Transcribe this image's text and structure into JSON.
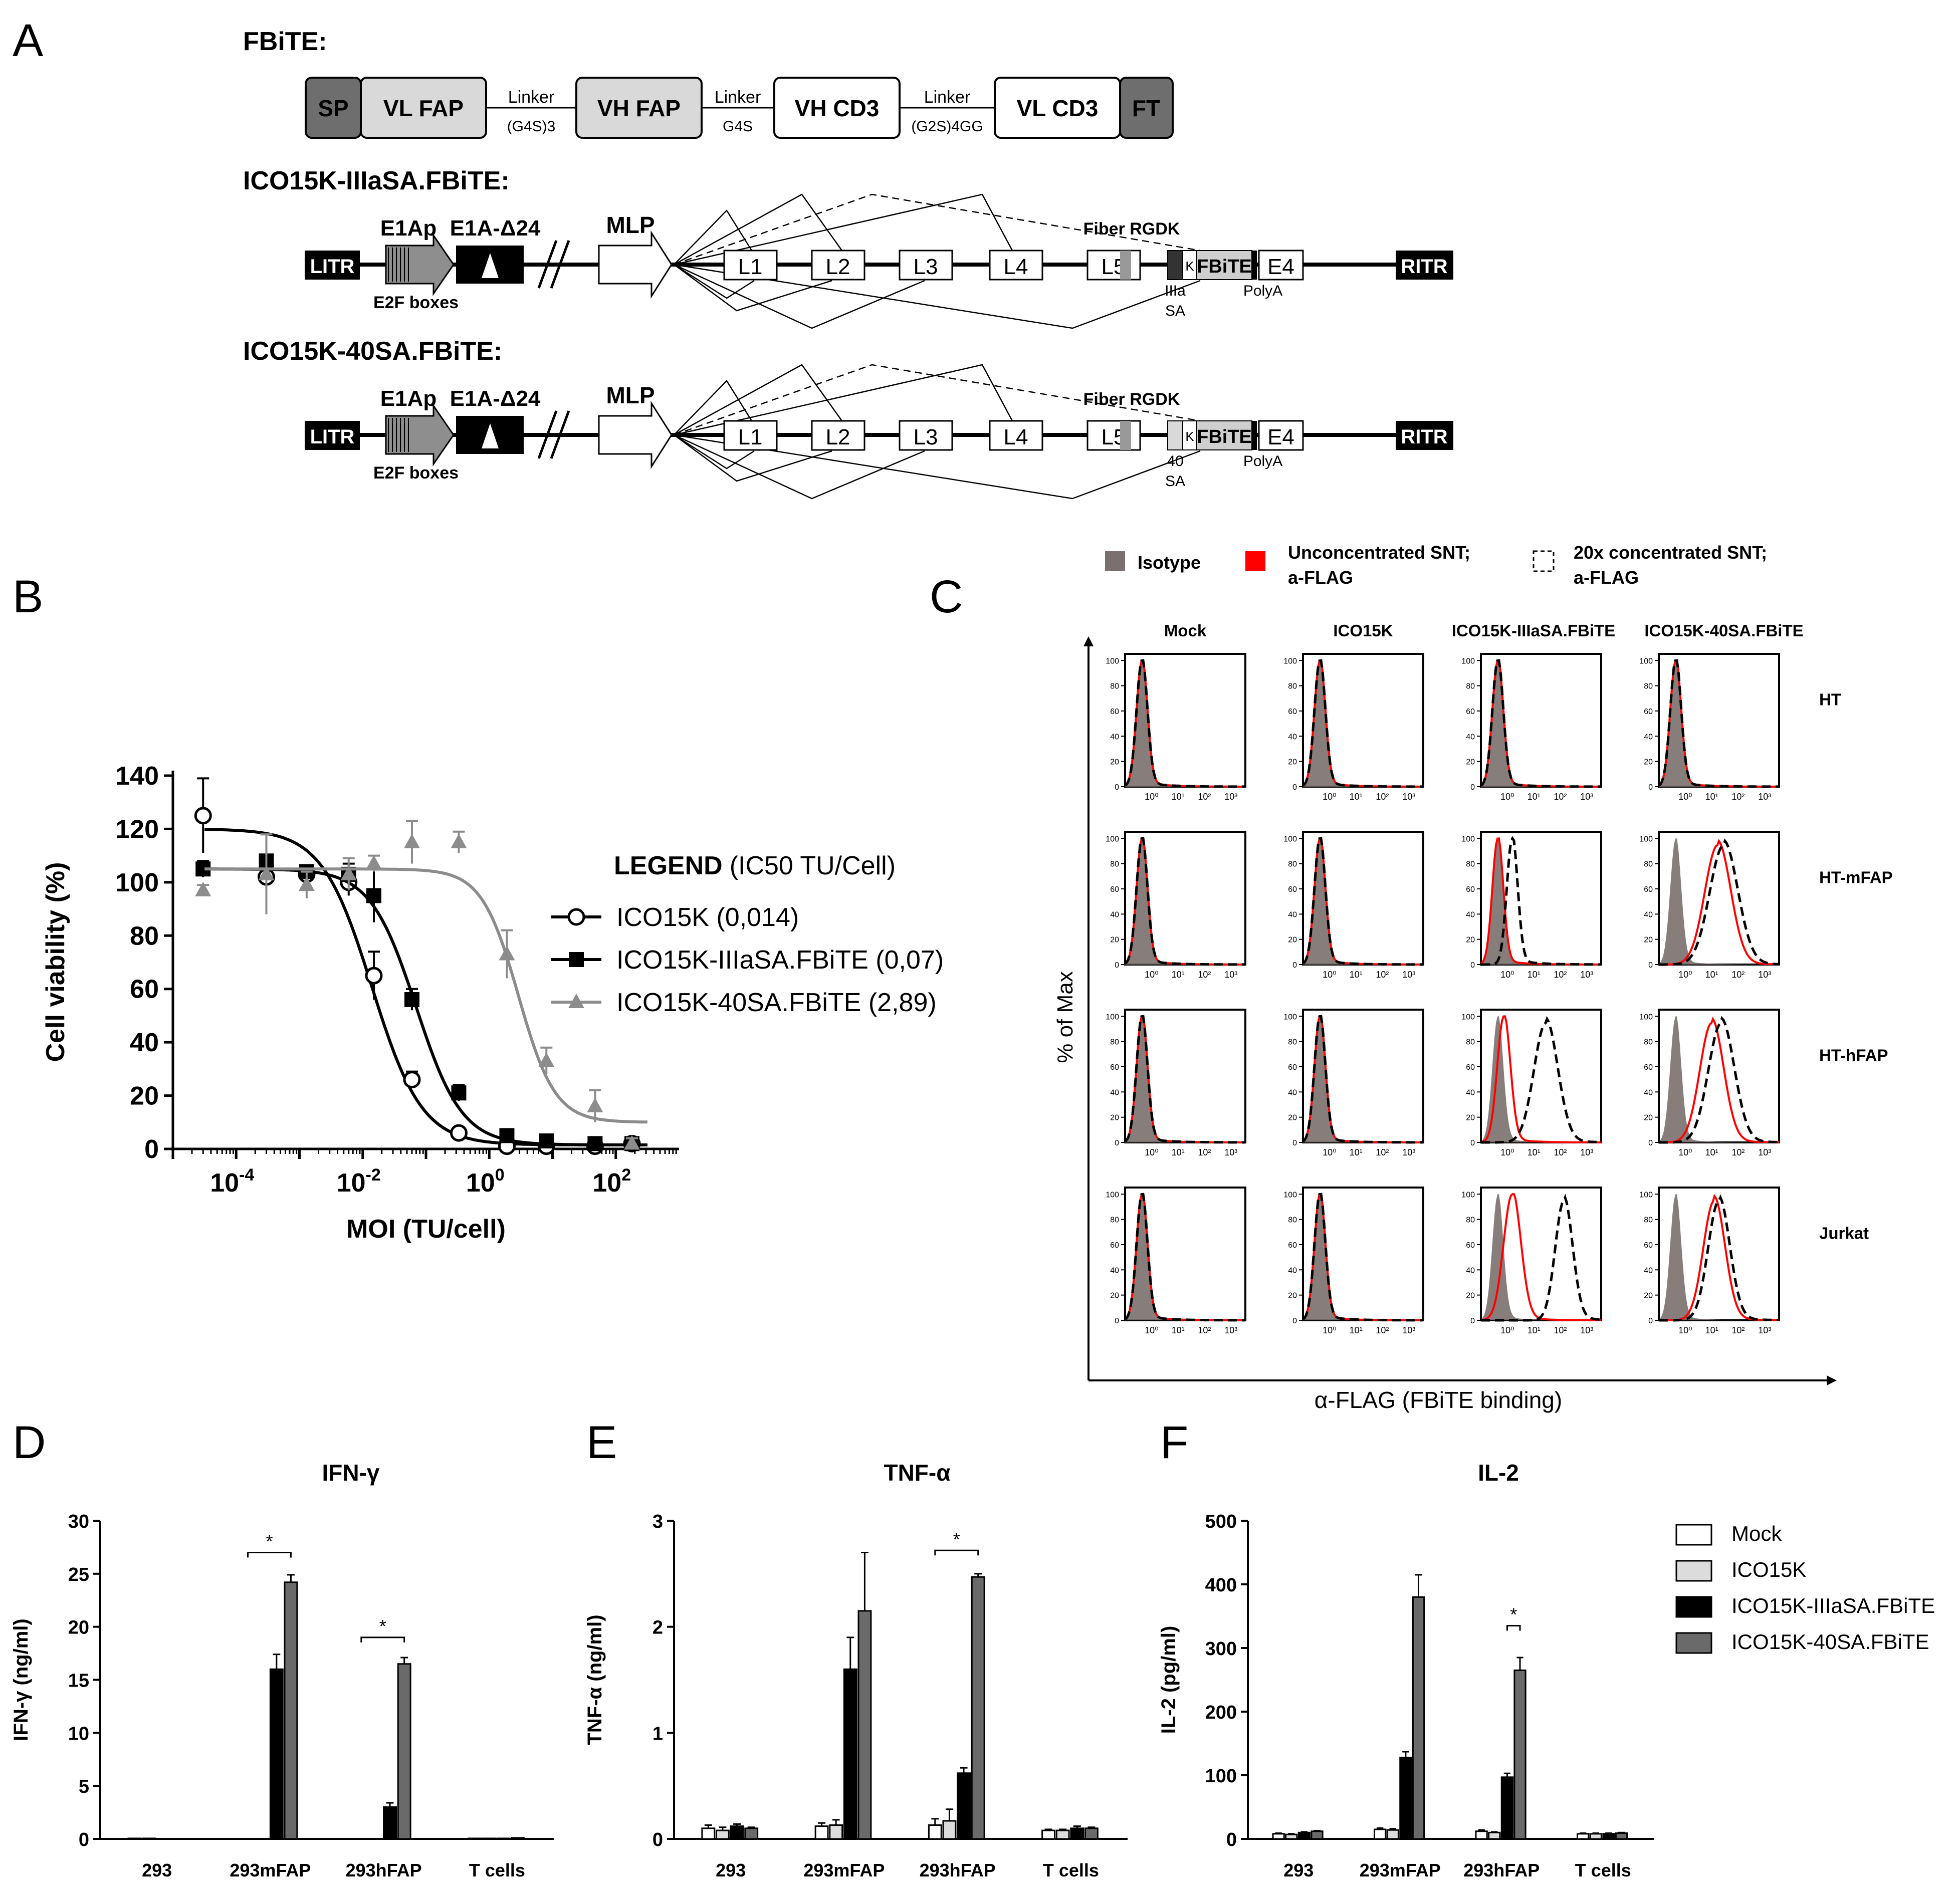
{
  "panels": {
    "A": "A",
    "B": "B",
    "C": "C",
    "D": "D",
    "E": "E",
    "F": "F"
  },
  "panel_a": {
    "fbite": {
      "title": "FBiTE:",
      "domains": [
        "SP",
        "VL FAP",
        "VH FAP",
        "VH CD3",
        "VL CD3",
        "FT"
      ],
      "linkers": [
        {
          "label": "Linker",
          "sub": "(G4S)3"
        },
        {
          "label": "Linker",
          "sub": "G4S"
        },
        {
          "label": "Linker",
          "sub": "(G2S)4GG"
        }
      ]
    },
    "constructs": [
      {
        "title": "ICO15K-IIIaSA.FBiTE:",
        "sa_label_1": "IIIa",
        "sa_label_2": "SA"
      },
      {
        "title": "ICO15K-40SA.FBiTE:",
        "sa_label_1": "40",
        "sa_label_2": "SA"
      }
    ],
    "genome": {
      "litr": "LITR",
      "ritr": "RITR",
      "e1ap": "E1Ap",
      "e1a": "E1A-Δ24",
      "e2f": "E2F boxes",
      "mlp": "MLP",
      "late": [
        "L1",
        "L2",
        "L3",
        "L4",
        "L5"
      ],
      "fiber": "Fiber RGDK",
      "k": "K",
      "fbite": "FBiTE",
      "e4": "E4",
      "polya": "PolyA"
    }
  },
  "chart_data": [
    {
      "id": "B",
      "type": "line",
      "title": "",
      "xlabel": "MOI (TU/cell)",
      "ylabel": "Cell viability (%)",
      "xscale": "log",
      "xlim": [
        1e-05,
        1000
      ],
      "ylim": [
        0,
        140
      ],
      "yticks": [
        "0",
        "20",
        "40",
        "60",
        "80",
        "100",
        "120",
        "140"
      ],
      "xticks": [
        {
          "base": "10",
          "exp": "-4",
          "v": 0.0001
        },
        {
          "base": "10",
          "exp": "-2",
          "v": 0.01
        },
        {
          "base": "10",
          "exp": "0",
          "v": 1
        },
        {
          "base": "10",
          "exp": "2",
          "v": 100
        }
      ],
      "legend_title": "LEGEND",
      "legend_subtitle": "(IC50 TU/Cell)",
      "series": [
        {
          "name": "ICO15K (0,014)",
          "marker": "open-circle",
          "color": "#000000",
          "top": 120,
          "bottom": 1.5,
          "ec50": 0.014,
          "hill": 1.1,
          "x": [
            3e-05,
            0.0003,
            0.0013,
            0.006,
            0.015,
            0.06,
            0.33,
            1.9,
            8,
            47,
            180
          ],
          "y": [
            125,
            102,
            103,
            100,
            65,
            26,
            6,
            1,
            1,
            1,
            2
          ],
          "err": [
            14,
            3,
            3,
            5,
            9,
            3,
            1,
            1,
            0.5,
            0.5,
            0.5
          ]
        },
        {
          "name": "ICO15K-IIIaSA.FBiTE (0,07)",
          "marker": "filled-square",
          "color": "#000000",
          "top": 105,
          "bottom": 1.5,
          "ec50": 0.07,
          "hill": 1.2,
          "x": [
            3e-05,
            0.0003,
            0.0013,
            0.006,
            0.015,
            0.06,
            0.33,
            1.9,
            8,
            47,
            180
          ],
          "y": [
            105,
            108,
            104,
            103,
            95,
            56,
            21,
            5,
            3,
            2,
            2
          ],
          "err": [
            3,
            10,
            2,
            4,
            10,
            4,
            3,
            2,
            0.5,
            0.5,
            0.5
          ]
        },
        {
          "name": "ICO15K-40SA.FBiTE (2,89)",
          "marker": "filled-triangle",
          "color": "#8c8c8c",
          "top": 105,
          "bottom": 10,
          "ec50": 2.89,
          "hill": 1.5,
          "x": [
            3e-05,
            0.0003,
            0.0013,
            0.006,
            0.015,
            0.06,
            0.33,
            1.9,
            8,
            47,
            180
          ],
          "y": [
            97,
            103,
            99,
            103,
            107,
            115,
            115,
            73,
            33,
            16,
            2
          ],
          "err": [
            2,
            15,
            5,
            6,
            3,
            8,
            4,
            9,
            5,
            6,
            2
          ]
        }
      ]
    },
    {
      "id": "C",
      "type": "histogram-grid",
      "legend": [
        {
          "label": "Isotype",
          "color": "#7a706e"
        },
        {
          "label": "Unconcentrated SNT;",
          "label2": "a-FLAG",
          "color": "#ff0000"
        },
        {
          "label": "20x concentrated SNT;",
          "label2": "a-FLAG",
          "color": "#000000"
        }
      ],
      "columns": [
        "Mock",
        "ICO15K",
        "ICO15K-IIIaSA.FBiTE",
        "ICO15K-40SA.FBiTE"
      ],
      "rows": [
        "HT",
        "HT-mFAP",
        "HT-hFAP",
        "Jurkat"
      ],
      "ylabel": "% of Max",
      "xlabel": "α-FLAG (FBiTE binding)",
      "yticks": [
        "0",
        "20",
        "40",
        "60",
        "80",
        "100"
      ],
      "xticks": [
        "10⁰",
        "10¹",
        "10²",
        "10³"
      ]
    },
    {
      "id": "D",
      "type": "bar",
      "title": "IFN-γ",
      "ylabel": "IFN-γ (ng/ml)",
      "ylim": [
        0,
        30
      ],
      "yticks": [
        "0",
        "5",
        "10",
        "15",
        "20",
        "25",
        "30"
      ],
      "categories": [
        "293",
        "293mFAP",
        "293hFAP",
        "T cells"
      ],
      "series": [
        {
          "name": "Mock",
          "color": "#ffffff",
          "values": [
            0.05,
            0,
            0,
            0.05
          ],
          "err": [
            0,
            0,
            0,
            0
          ]
        },
        {
          "name": "ICO15K",
          "color": "#dcdcdc",
          "values": [
            0.05,
            0,
            0,
            0.05
          ],
          "err": [
            0,
            0,
            0,
            0
          ]
        },
        {
          "name": "ICO15K-IIIaSA.FBiTE",
          "color": "#000000",
          "values": [
            0,
            16,
            3,
            0.05
          ],
          "err": [
            0,
            1.4,
            0.4,
            0
          ]
        },
        {
          "name": "ICO15K-40SA.FBiTE",
          "color": "#6a6a6a",
          "values": [
            0,
            24.2,
            16.5,
            0.1
          ],
          "err": [
            0,
            0.7,
            0.6,
            0
          ]
        }
      ],
      "significance": [
        {
          "category": 1,
          "from": 0,
          "to": 3,
          "label": "*",
          "y": 27
        },
        {
          "category": 2,
          "from": 0,
          "to": 3,
          "label": "*",
          "y": 19
        }
      ]
    },
    {
      "id": "E",
      "type": "bar",
      "title": "TNF-α",
      "ylabel": "TNF-α (ng/ml)",
      "ylim": [
        0,
        3
      ],
      "yticks": [
        "0",
        "1",
        "2",
        "3"
      ],
      "categories": [
        "293",
        "293mFAP",
        "293hFAP",
        "T cells"
      ],
      "series": [
        {
          "name": "Mock",
          "color": "#ffffff",
          "values": [
            0.1,
            0.12,
            0.13,
            0.08
          ],
          "err": [
            0.03,
            0.03,
            0.06,
            0.01
          ]
        },
        {
          "name": "ICO15K",
          "color": "#dcdcdc",
          "values": [
            0.08,
            0.13,
            0.17,
            0.08
          ],
          "err": [
            0.03,
            0.05,
            0.11,
            0.01
          ]
        },
        {
          "name": "ICO15K-IIIaSA.FBiTE",
          "color": "#000000",
          "values": [
            0.12,
            1.6,
            0.62,
            0.1
          ],
          "err": [
            0.02,
            0.3,
            0.05,
            0.02
          ]
        },
        {
          "name": "ICO15K-40SA.FBiTE",
          "color": "#6a6a6a",
          "values": [
            0.1,
            2.15,
            2.47,
            0.1
          ],
          "err": [
            0.01,
            0.55,
            0.03,
            0.01
          ]
        }
      ],
      "significance": [
        {
          "category": 2,
          "from": 0,
          "to": 3,
          "label": "*",
          "y": 2.72
        }
      ]
    },
    {
      "id": "F",
      "type": "bar",
      "title": "IL-2",
      "ylabel": "IL-2 (pg/ml)",
      "ylim": [
        0,
        500
      ],
      "yticks": [
        "0",
        "100",
        "200",
        "300",
        "400",
        "500"
      ],
      "categories": [
        "293",
        "293mFAP",
        "293hFAP",
        "T cells"
      ],
      "series": [
        {
          "name": "Mock",
          "color": "#ffffff",
          "values": [
            8,
            15,
            12,
            8
          ],
          "err": [
            1,
            2,
            2,
            1
          ]
        },
        {
          "name": "ICO15K",
          "color": "#dcdcdc",
          "values": [
            7,
            14,
            10,
            8
          ],
          "err": [
            1,
            2,
            1,
            1
          ]
        },
        {
          "name": "ICO15K-IIIaSA.FBiTE",
          "color": "#000000",
          "values": [
            10,
            128,
            97,
            8
          ],
          "err": [
            1,
            9,
            6,
            1
          ]
        },
        {
          "name": "ICO15K-40SA.FBiTE",
          "color": "#6a6a6a",
          "values": [
            12,
            380,
            265,
            9
          ],
          "err": [
            1,
            35,
            20,
            1
          ]
        }
      ],
      "significance": [
        {
          "category": 2,
          "from": 2,
          "to": 3,
          "label": "*",
          "y": 335
        }
      ]
    }
  ]
}
